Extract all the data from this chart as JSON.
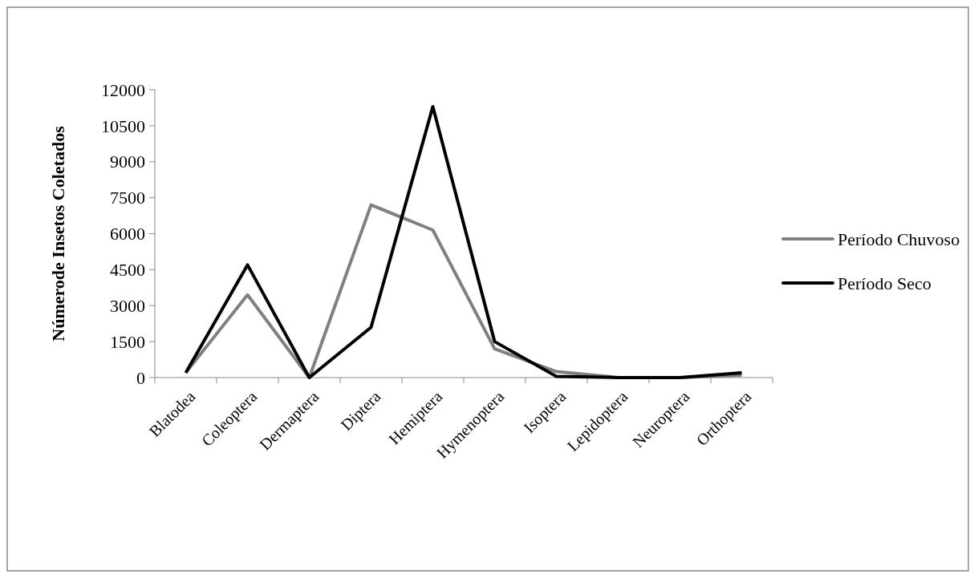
{
  "chart_data": {
    "type": "line",
    "ylabel": "Númerode Insetos Coletados",
    "categories": [
      "Blatodea",
      "Coleoptera",
      "Dermaptera",
      "Diptera",
      "Hemiptera",
      "Hymenoptera",
      "Isoptera",
      "Lepidoptera",
      "Neuroptera",
      "Orthoptera"
    ],
    "series": [
      {
        "name": "Período Chuvoso",
        "color": "#808080",
        "values": [
          200,
          3450,
          0,
          7200,
          6150,
          1200,
          250,
          0,
          0,
          100
        ]
      },
      {
        "name": "Período Seco",
        "color": "#000000",
        "values": [
          200,
          4700,
          0,
          2100,
          11300,
          1500,
          50,
          0,
          0,
          200
        ]
      }
    ],
    "ylim": [
      0,
      12000
    ],
    "yticks": [
      0,
      1500,
      3000,
      4500,
      6000,
      7500,
      9000,
      10500,
      12000
    ],
    "grid": false,
    "legend": "right",
    "marker": "none",
    "line_style": "solid"
  }
}
